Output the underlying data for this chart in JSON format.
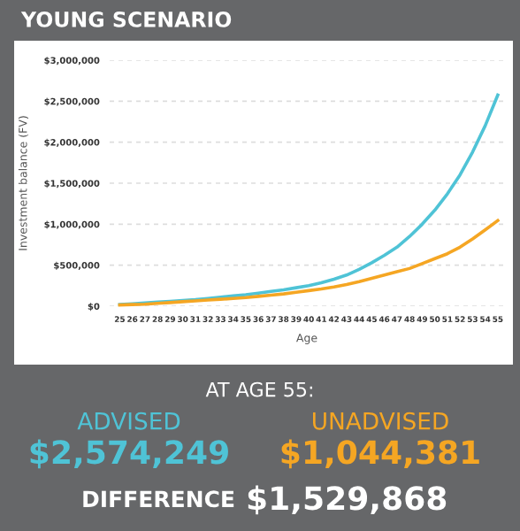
{
  "chart_data": {
    "type": "line",
    "title": "YOUNG SCENARIO",
    "xlabel": "Age",
    "ylabel": "Investment balance (FV)",
    "categories": [
      "25",
      "26",
      "27",
      "28",
      "29",
      "30",
      "31",
      "32",
      "33",
      "34",
      "35",
      "36",
      "37",
      "38",
      "39",
      "40",
      "41",
      "42",
      "43",
      "44",
      "45",
      "46",
      "47",
      "48",
      "49",
      "50",
      "51",
      "52",
      "53",
      "54",
      "55"
    ],
    "series": [
      {
        "name": "ADVISED",
        "color": "#4fc3d6",
        "values": [
          20000,
          30000,
          40000,
          50000,
          60000,
          70000,
          80000,
          95000,
          110000,
          125000,
          140000,
          160000,
          180000,
          200000,
          225000,
          250000,
          285000,
          330000,
          380000,
          450000,
          530000,
          620000,
          720000,
          850000,
          1000000,
          1170000,
          1370000,
          1600000,
          1880000,
          2200000,
          2574249
        ]
      },
      {
        "name": "UNADVISED",
        "color": "#f5a623",
        "values": [
          15000,
          20000,
          25000,
          35000,
          45000,
          55000,
          65000,
          75000,
          85000,
          95000,
          105000,
          120000,
          135000,
          150000,
          170000,
          190000,
          210000,
          235000,
          265000,
          300000,
          340000,
          380000,
          420000,
          460000,
          520000,
          580000,
          640000,
          720000,
          820000,
          930000,
          1044381
        ]
      }
    ],
    "ylim": [
      0,
      3000000
    ],
    "yticks": [
      {
        "value": 0,
        "label": "$0"
      },
      {
        "value": 500000,
        "label": "$500,000"
      },
      {
        "value": 1000000,
        "label": "$1,000,000"
      },
      {
        "value": 1500000,
        "label": "$1,500,000"
      },
      {
        "value": 2000000,
        "label": "$2,000,000"
      },
      {
        "value": 2500000,
        "label": "$2,500,000"
      },
      {
        "value": 3000000,
        "label": "$3,000,000"
      }
    ],
    "grid": "y",
    "legend": false,
    "marker": "none",
    "line_style": "solid",
    "annotations": [
      "AT AGE 55:",
      "$2,574,249",
      "$1,044,381",
      "DIFFERENCE",
      "$1,529,868"
    ]
  }
}
